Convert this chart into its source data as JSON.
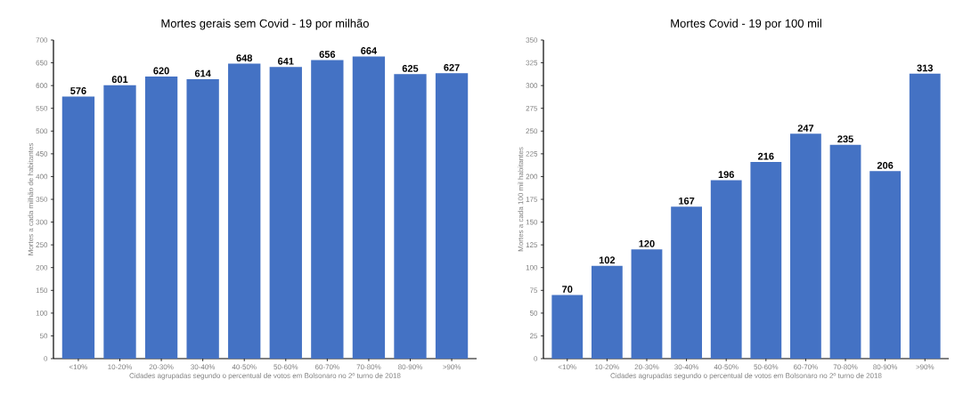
{
  "chart_data": [
    {
      "type": "bar",
      "title": "Mortes gerais sem Covid - 19 por milhão",
      "xlabel": "Cidades agrupadas segundo o percentual de votos em Bolsonaro no 2º turno de 2018",
      "ylabel": "Mortes a cada milhão de habitantes",
      "categories": [
        "<10%",
        "10-20%",
        "20-30%",
        "30-40%",
        "40-50%",
        "50-60%",
        "60-70%",
        "70-80%",
        "80-90%",
        ">90%"
      ],
      "values": [
        576,
        601,
        620,
        614,
        648,
        641,
        656,
        664,
        625,
        627
      ],
      "color": "#4472c4",
      "ylim": [
        0,
        700
      ],
      "yticks": [
        0,
        50,
        100,
        150,
        200,
        250,
        300,
        350,
        400,
        450,
        500,
        550,
        600,
        650,
        700
      ],
      "data_labels": true
    },
    {
      "type": "bar",
      "title": "Mortes Covid - 19 por 100 mil",
      "xlabel": "Cidades agrupadas segundo o percentual de votos em Bolsonaro no 2º turno de 2018",
      "ylabel": "Mortes a cada 100 mil habitantes",
      "categories": [
        "<10%",
        "10-20%",
        "20-30%",
        "30-40%",
        "40-50%",
        "50-60%",
        "60-70%",
        "70-80%",
        "80-90%",
        ">90%"
      ],
      "values": [
        70,
        102,
        120,
        167,
        196,
        216,
        247,
        235,
        206,
        313
      ],
      "color": "#4472c4",
      "ylim": [
        0,
        350
      ],
      "yticks": [
        0,
        25,
        50,
        75,
        100,
        125,
        150,
        175,
        200,
        225,
        250,
        275,
        300,
        325,
        350
      ],
      "data_labels": true
    }
  ]
}
